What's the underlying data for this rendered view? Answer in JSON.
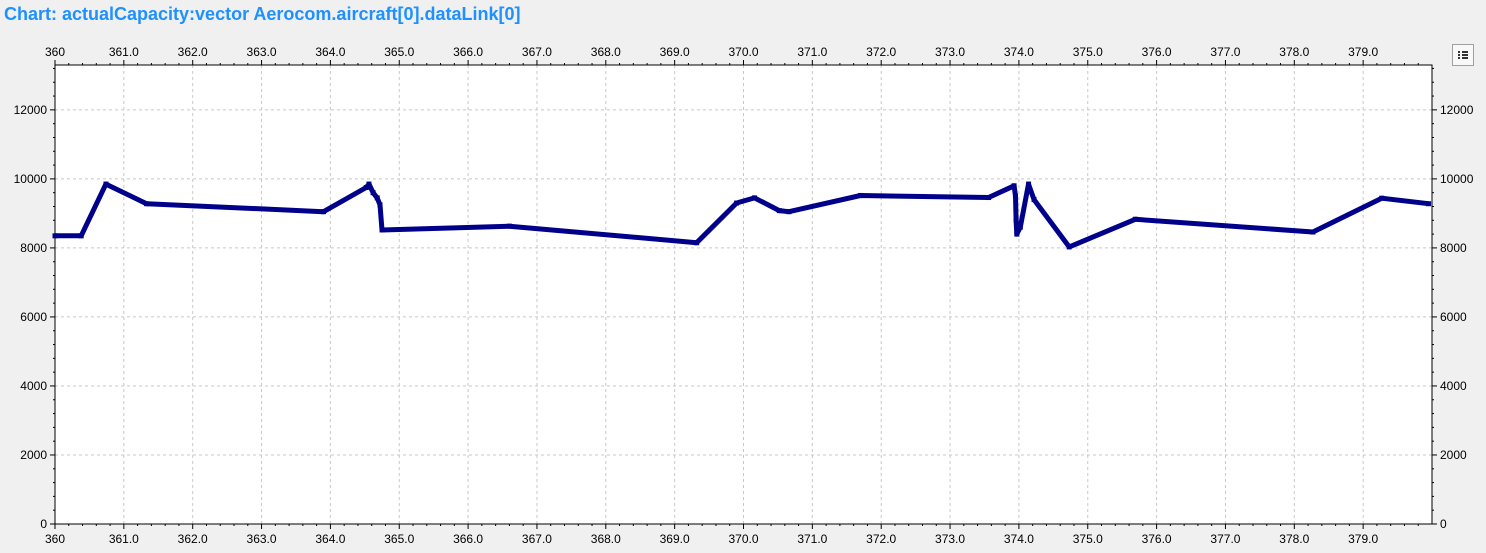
{
  "window": {
    "title": "Chart: actualCapacity:vector Aerocom.aircraft[0].dataLink[0]"
  },
  "toolbar": {
    "legend_icon": "legend-list-icon"
  },
  "chart_data": {
    "type": "line",
    "title": "",
    "xlabel": "",
    "ylabel": "",
    "xlim": [
      360,
      380
    ],
    "ylim": [
      0,
      13300
    ],
    "grid": true,
    "x_ticks": [
      {
        "value": 360,
        "label": "360"
      },
      {
        "value": 361,
        "label": "361.0"
      },
      {
        "value": 362,
        "label": "362.0"
      },
      {
        "value": 363,
        "label": "363.0"
      },
      {
        "value": 364,
        "label": "364.0"
      },
      {
        "value": 365,
        "label": "365.0"
      },
      {
        "value": 366,
        "label": "366.0"
      },
      {
        "value": 367,
        "label": "367.0"
      },
      {
        "value": 368,
        "label": "368.0"
      },
      {
        "value": 369,
        "label": "369.0"
      },
      {
        "value": 370,
        "label": "370.0"
      },
      {
        "value": 371,
        "label": "371.0"
      },
      {
        "value": 372,
        "label": "372.0"
      },
      {
        "value": 373,
        "label": "373.0"
      },
      {
        "value": 374,
        "label": "374.0"
      },
      {
        "value": 375,
        "label": "375.0"
      },
      {
        "value": 376,
        "label": "376.0"
      },
      {
        "value": 377,
        "label": "377.0"
      },
      {
        "value": 378,
        "label": "378.0"
      },
      {
        "value": 379,
        "label": "379.0"
      }
    ],
    "y_ticks": [
      {
        "value": 0,
        "label": "0"
      },
      {
        "value": 2000,
        "label": "2000"
      },
      {
        "value": 4000,
        "label": "4000"
      },
      {
        "value": 6000,
        "label": "6000"
      },
      {
        "value": 8000,
        "label": "8000"
      },
      {
        "value": 10000,
        "label": "10000"
      },
      {
        "value": 12000,
        "label": "12000"
      }
    ],
    "series": [
      {
        "color": "#00008b",
        "points": [
          [
            360.0,
            8350
          ],
          [
            360.38,
            8350
          ],
          [
            360.74,
            9850
          ],
          [
            361.33,
            9280
          ],
          [
            363.9,
            9050
          ],
          [
            364.52,
            9750
          ],
          [
            364.56,
            9850
          ],
          [
            364.62,
            9600
          ],
          [
            364.68,
            9450
          ],
          [
            364.72,
            9250
          ],
          [
            364.75,
            8520
          ],
          [
            366.6,
            8630
          ],
          [
            369.32,
            8150
          ],
          [
            369.9,
            9300
          ],
          [
            370.16,
            9450
          ],
          [
            370.52,
            9080
          ],
          [
            370.66,
            9050
          ],
          [
            371.7,
            9520
          ],
          [
            373.56,
            9460
          ],
          [
            373.93,
            9800
          ],
          [
            373.95,
            9500
          ],
          [
            373.96,
            8800
          ],
          [
            373.97,
            8400
          ],
          [
            374.02,
            8600
          ],
          [
            374.14,
            9850
          ],
          [
            374.22,
            9400
          ],
          [
            374.73,
            8030
          ],
          [
            375.69,
            8830
          ],
          [
            378.27,
            8460
          ],
          [
            379.27,
            9440
          ],
          [
            379.95,
            9280
          ]
        ]
      }
    ]
  }
}
